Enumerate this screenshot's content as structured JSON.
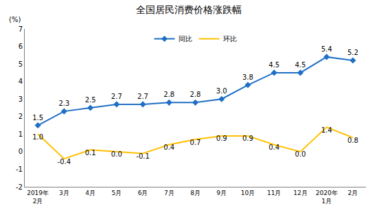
{
  "chart_data": {
    "type": "line",
    "title": "全国居民消费价格涨跌幅",
    "y_label": "(%)",
    "categories": [
      "2019年2月",
      "3月",
      "4月",
      "5月",
      "6月",
      "7月",
      "8月",
      "9月",
      "10月",
      "11月",
      "12月",
      "2020年1月",
      "2月"
    ],
    "series": [
      {
        "name": "同比",
        "color": "#1f6fc5",
        "marker": "diamond",
        "values": [
          1.5,
          2.3,
          2.5,
          2.7,
          2.7,
          2.8,
          2.8,
          3.0,
          3.8,
          4.5,
          4.5,
          5.4,
          5.2
        ],
        "value_labels": [
          "1.5",
          "2.3",
          "2.5",
          "2.7",
          "2.7",
          "2.8",
          "2.8",
          "3.0",
          "3.8",
          "4.5",
          "4.5",
          "5.4",
          "5.2"
        ]
      },
      {
        "name": "环比",
        "color": "#ffc000",
        "marker": "none",
        "values": [
          1.0,
          -0.4,
          0.1,
          0.0,
          -0.1,
          0.4,
          0.7,
          0.9,
          0.9,
          0.4,
          0.0,
          1.4,
          0.8
        ],
        "value_labels": [
          "1.0",
          "-0.4",
          "0.1",
          "0.0",
          "-0.1",
          "0.4",
          "0.7",
          "0.9",
          "0.9",
          "0.4",
          "0.0",
          "1.4",
          "0.8"
        ]
      }
    ],
    "ylim": [
      -2,
      7
    ],
    "yticks": [
      -2,
      -1,
      0,
      1,
      2,
      3,
      4,
      5,
      6,
      7
    ],
    "grid": false,
    "legend": "top",
    "data_labels": true
  }
}
